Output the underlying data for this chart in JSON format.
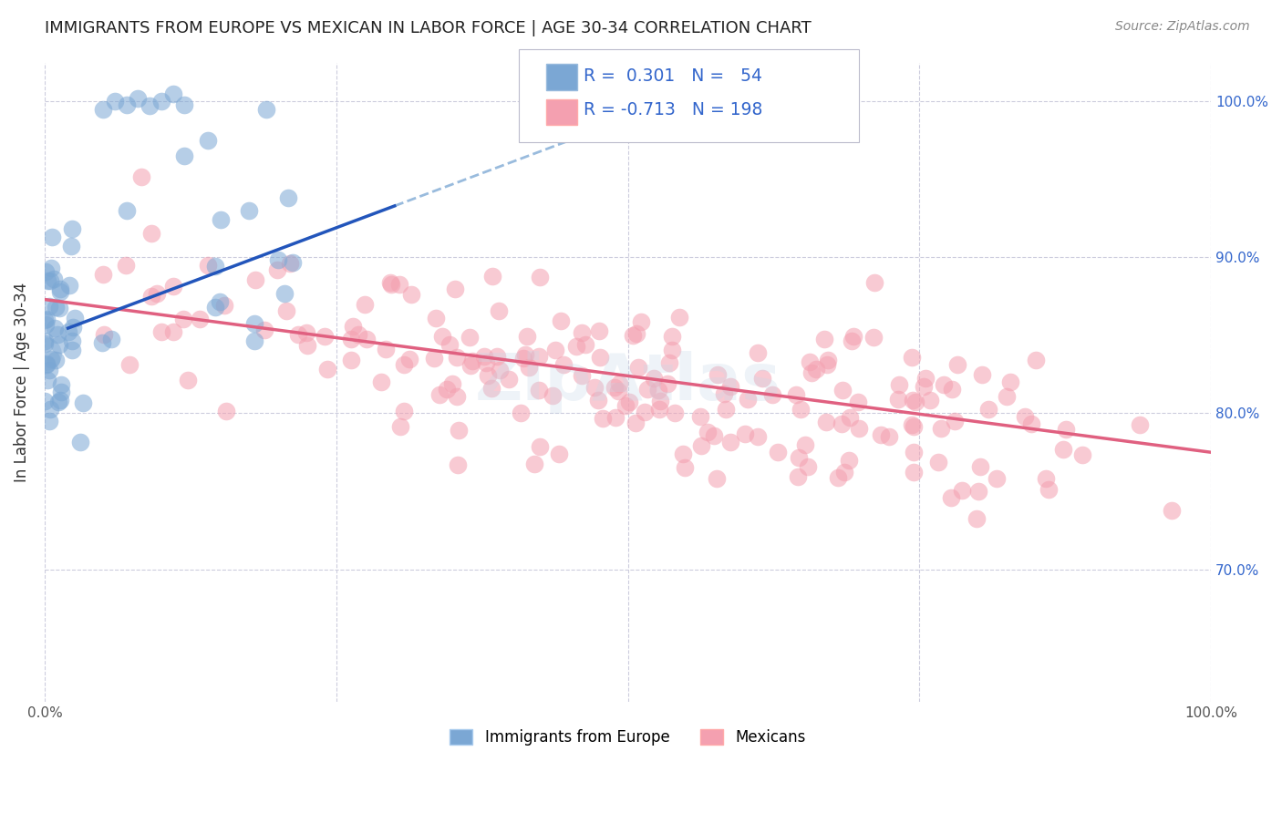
{
  "title": "IMMIGRANTS FROM EUROPE VS MEXICAN IN LABOR FORCE | AGE 30-34 CORRELATION CHART",
  "source": "Source: ZipAtlas.com",
  "ylabel": "In Labor Force | Age 30-34",
  "xlim": [
    0.0,
    1.0
  ],
  "ylim": [
    0.615,
    1.025
  ],
  "blue_R": 0.301,
  "blue_N": 54,
  "pink_R": -0.713,
  "pink_N": 198,
  "blue_color": "#7BA7D4",
  "pink_color": "#F4A0B0",
  "blue_line_color": "#2255BB",
  "pink_line_color": "#E06080",
  "dashed_line_color": "#99BBDD",
  "background_color": "#FFFFFF",
  "grid_color": "#CCCCDD",
  "title_color": "#222222",
  "source_color": "#888888",
  "ylabel_color": "#333333",
  "legend_color": "#3366CC",
  "ytick_color": "#3366CC",
  "xtick_color": "#555555"
}
